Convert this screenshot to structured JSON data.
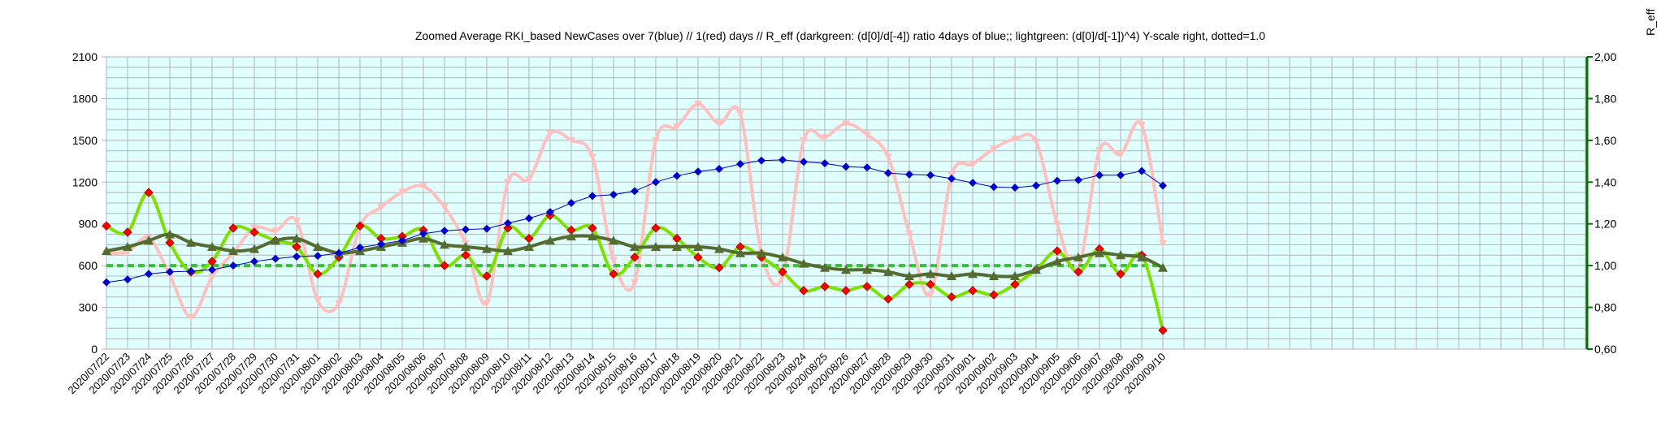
{
  "chart_data": {
    "type": "line",
    "title": "Zoomed Average RKI_based NewCases over 7(blue) // 1(red) days //  R_eff (darkgreen: (d[0]/d[-4]) ratio 4days of blue;; lightgreen: (d[0]/d[-1])^4) Y-scale right, dotted=1.0",
    "y2label": "R_eff",
    "ylim": [
      0,
      2100
    ],
    "y2lim": [
      0.6,
      2.0
    ],
    "y_ticks": [
      "0",
      "300",
      "600",
      "900",
      "1200",
      "1500",
      "1800",
      "2100"
    ],
    "y2_ticks": [
      "0,60",
      "0,80",
      "1,00",
      "1,20",
      "1,40",
      "1,60",
      "1,80",
      "2,00"
    ],
    "grid": true,
    "categories": [
      "2020/07/22",
      "2020/07/23",
      "2020/07/24",
      "2020/07/25",
      "2020/07/26",
      "2020/07/27",
      "2020/07/28",
      "2020/07/29",
      "2020/07/30",
      "2020/07/31",
      "2020/08/01",
      "2020/08/02",
      "2020/08/03",
      "2020/08/04",
      "2020/08/05",
      "2020/08/06",
      "2020/08/07",
      "2020/08/08",
      "2020/08/09",
      "2020/08/10",
      "2020/08/11",
      "2020/08/12",
      "2020/08/13",
      "2020/08/14",
      "2020/08/15",
      "2020/08/16",
      "2020/08/17",
      "2020/08/18",
      "2020/08/19",
      "2020/08/20",
      "2020/08/21",
      "2020/08/22",
      "2020/08/23",
      "2020/08/24",
      "2020/08/25",
      "2020/08/26",
      "2020/08/27",
      "2020/08/28",
      "2020/08/29",
      "2020/08/30",
      "2020/08/31",
      "2020/09/01",
      "2020/09/02",
      "2020/09/03",
      "2020/09/04",
      "2020/09/05",
      "2020/09/06",
      "2020/09/07",
      "2020/09/08",
      "2020/09/09",
      "2020/09/10"
    ],
    "series": [
      {
        "axis": "left",
        "color": "#0000cc",
        "marker": "diamond",
        "values": [
          480,
          500,
          540,
          555,
          560,
          570,
          600,
          630,
          650,
          665,
          670,
          690,
          730,
          755,
          780,
          830,
          850,
          860,
          865,
          905,
          940,
          985,
          1050,
          1100,
          1110,
          1135,
          1200,
          1245,
          1275,
          1295,
          1330,
          1355,
          1360,
          1345,
          1335,
          1310,
          1305,
          1265,
          1255,
          1250,
          1225,
          1195,
          1165,
          1160,
          1175,
          1210,
          1215,
          1250,
          1250,
          1280,
          1175
        ]
      },
      {
        "axis": "left",
        "color": "#ffc0c0",
        "marker": "triangle-down",
        "values": [
          690,
          700,
          800,
          530,
          230,
          520,
          690,
          870,
          850,
          920,
          350,
          330,
          880,
          1020,
          1130,
          1170,
          1020,
          760,
          330,
          1200,
          1220,
          1550,
          1500,
          1380,
          640,
          480,
          1500,
          1600,
          1760,
          1620,
          1690,
          690,
          520,
          1500,
          1520,
          1620,
          1540,
          1380,
          830,
          390,
          1250,
          1330,
          1440,
          1510,
          1490,
          900,
          580,
          1430,
          1400,
          1610,
          760
        ]
      },
      {
        "axis": "right",
        "color": "#556b2f",
        "marker": "triangle",
        "values": [
          1.07,
          1.09,
          1.12,
          1.15,
          1.11,
          1.09,
          1.07,
          1.08,
          1.12,
          1.13,
          1.09,
          1.06,
          1.07,
          1.09,
          1.11,
          1.13,
          1.1,
          1.09,
          1.08,
          1.07,
          1.09,
          1.12,
          1.14,
          1.14,
          1.12,
          1.09,
          1.09,
          1.09,
          1.09,
          1.08,
          1.06,
          1.06,
          1.04,
          1.01,
          0.99,
          0.98,
          0.98,
          0.97,
          0.95,
          0.96,
          0.95,
          0.96,
          0.95,
          0.95,
          0.98,
          1.02,
          1.04,
          1.06,
          1.05,
          1.04,
          0.99
        ]
      },
      {
        "axis": "right",
        "color": "#7fe000",
        "marker": "diamond",
        "values": [
          1.19,
          1.16,
          1.35,
          1.11,
          0.97,
          1.02,
          1.18,
          1.16,
          1.12,
          1.09,
          0.96,
          1.04,
          1.19,
          1.13,
          1.14,
          1.17,
          1.0,
          1.05,
          0.95,
          1.18,
          1.13,
          1.24,
          1.17,
          1.18,
          0.96,
          1.04,
          1.18,
          1.13,
          1.04,
          0.99,
          1.09,
          1.04,
          0.97,
          0.88,
          0.9,
          0.88,
          0.9,
          0.84,
          0.91,
          0.91,
          0.85,
          0.88,
          0.86,
          0.91,
          0.98,
          1.07,
          0.97,
          1.08,
          0.96,
          1.05,
          0.69
        ]
      },
      {
        "axis": "right",
        "color": "#3bbf3b",
        "style": "dashed",
        "label": "dotted=1.0",
        "values": [
          1.0,
          1.0,
          1.0,
          1.0,
          1.0,
          1.0,
          1.0,
          1.0,
          1.0,
          1.0,
          1.0,
          1.0,
          1.0,
          1.0,
          1.0,
          1.0,
          1.0,
          1.0,
          1.0,
          1.0,
          1.0,
          1.0,
          1.0,
          1.0,
          1.0,
          1.0,
          1.0,
          1.0,
          1.0,
          1.0,
          1.0,
          1.0,
          1.0,
          1.0,
          1.0,
          1.0,
          1.0,
          1.0,
          1.0,
          1.0,
          1.0,
          1.0,
          1.0,
          1.0,
          1.0,
          1.0,
          1.0,
          1.0,
          1.0,
          1.0,
          1.0
        ]
      }
    ],
    "plot_bg": "#e0ffff",
    "grid_color": "#b3b3b3",
    "right_axis_color": "#007000",
    "marker_red": "#ff0000"
  }
}
